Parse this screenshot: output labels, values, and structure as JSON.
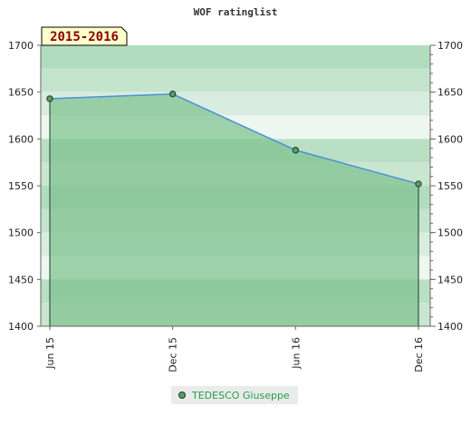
{
  "chart_data": {
    "type": "area",
    "title": "WOF ratinglist",
    "annotation": "2015-2016",
    "categories": [
      "Jun 15",
      "Dec 15",
      "Jun 16",
      "Dec 16"
    ],
    "series": [
      {
        "name": "TEDESCO Giuseppe",
        "values": [
          1643,
          1648,
          1588,
          1552
        ]
      }
    ],
    "ylim": [
      1400,
      1700
    ],
    "yticks": [
      1400,
      1450,
      1500,
      1550,
      1600,
      1650,
      1700
    ],
    "ytick_labels": [
      "1400",
      "1450",
      "1500",
      "1550",
      "1600",
      "1650",
      "1700"
    ],
    "xlabel": "",
    "ylabel": "",
    "grid": true,
    "legend_position": "bottom",
    "colors": {
      "line": "#4a90d9",
      "fill": "#7ec28f",
      "marker": "#5a9a6a",
      "marker_border": "#1d3d24",
      "legend_text": "#2e9a4b",
      "annotation_text": "#8b0000",
      "annotation_bg": "#ffffcc"
    }
  }
}
